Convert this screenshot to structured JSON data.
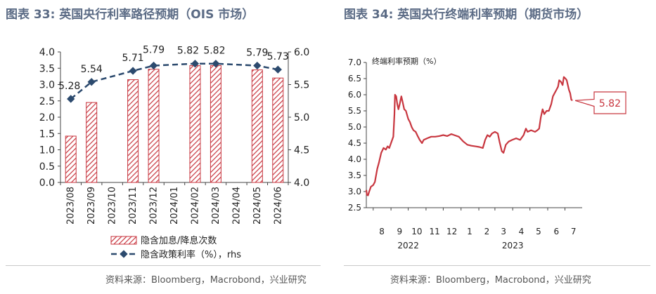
{
  "panels": {
    "left": {
      "title": "图表 33: 英国央行利率路径预期（OIS 市场）",
      "source": "资料来源：Bloomberg，Macrobond，兴业研究"
    },
    "right": {
      "title": "图表 34: 英国央行终端利率预期（期货市场）",
      "source": "资料来源：Bloomberg，Macrobond，兴业研究"
    }
  },
  "chart_data": [
    {
      "type": "bar",
      "categories": [
        "2023/08",
        "2023/09",
        "2023/10",
        "2023/11",
        "2023/12",
        "2024/01",
        "2024/02",
        "2024/03",
        "2024/04",
        "2024/05",
        "2024/06"
      ],
      "series": [
        {
          "name": "隐含加息/降息次数",
          "kind": "bar",
          "axis": "left",
          "values": [
            1.42,
            2.45,
            0,
            3.15,
            3.47,
            0,
            3.58,
            3.58,
            0,
            3.45,
            3.2
          ]
        },
        {
          "name": "隐含政策利率（%），rhs",
          "kind": "line",
          "axis": "right",
          "values": [
            5.28,
            5.54,
            null,
            5.71,
            5.79,
            null,
            5.82,
            5.82,
            null,
            5.79,
            5.73
          ],
          "labels": [
            "5.28",
            "5.54",
            "",
            "5.71",
            "5.79",
            "",
            "5.82",
            "5.82",
            "",
            "5.79",
            "5.73"
          ]
        }
      ],
      "ylim": [
        0,
        4.0
      ],
      "yticks": [
        "0.0",
        "0.5",
        "1.0",
        "1.5",
        "2.0",
        "2.5",
        "3.0",
        "3.5",
        "4.0"
      ],
      "y2lim": [
        4.0,
        6.0
      ],
      "y2ticks": [
        "4.0",
        "4.5",
        "5.0",
        "5.5",
        "6.0"
      ],
      "legend_position": "bottom",
      "colors": {
        "bar": "#c8363f",
        "line": "#2c4a6e"
      }
    },
    {
      "type": "line",
      "ylabel": "终端利率预期（%）",
      "ylim": [
        2.5,
        7.0
      ],
      "yticks": [
        "2.5",
        "3.0",
        "3.5",
        "4.0",
        "4.5",
        "5.0",
        "5.5",
        "6.0",
        "6.5",
        "7.0"
      ],
      "month_ticks": [
        "8",
        "9",
        "10",
        "11",
        "12",
        "1",
        "2",
        "3",
        "4",
        "5",
        "6",
        "7"
      ],
      "year_labels": [
        "2022",
        "2023"
      ],
      "callout": "5.82",
      "x_start": "2022-07-20",
      "x_end": "2023-07-31",
      "series": [
        {
          "color": "#c8363f",
          "points": [
            [
              "2022-07-20",
              3.05
            ],
            [
              "2022-07-21",
              2.9
            ],
            [
              "2022-07-23",
              2.88
            ],
            [
              "2022-07-25",
              3.0
            ],
            [
              "2022-07-28",
              3.15
            ],
            [
              "2022-08-01",
              3.2
            ],
            [
              "2022-08-04",
              3.3
            ],
            [
              "2022-08-08",
              3.7
            ],
            [
              "2022-08-11",
              3.9
            ],
            [
              "2022-08-15",
              4.2
            ],
            [
              "2022-08-19",
              4.35
            ],
            [
              "2022-08-23",
              4.3
            ],
            [
              "2022-08-26",
              4.4
            ],
            [
              "2022-08-29",
              4.35
            ],
            [
              "2022-09-01",
              4.5
            ],
            [
              "2022-09-05",
              4.7
            ],
            [
              "2022-09-07",
              5.4
            ],
            [
              "2022-09-08",
              6.0
            ],
            [
              "2022-09-10",
              5.95
            ],
            [
              "2022-09-12",
              5.7
            ],
            [
              "2022-09-14",
              5.55
            ],
            [
              "2022-09-16",
              5.7
            ],
            [
              "2022-09-19",
              5.95
            ],
            [
              "2022-09-21",
              5.8
            ],
            [
              "2022-09-24",
              5.55
            ],
            [
              "2022-09-27",
              5.5
            ],
            [
              "2022-10-01",
              5.25
            ],
            [
              "2022-10-04",
              5.15
            ],
            [
              "2022-10-07",
              5.0
            ],
            [
              "2022-10-10",
              4.9
            ],
            [
              "2022-10-14",
              4.85
            ],
            [
              "2022-10-18",
              4.7
            ],
            [
              "2022-10-21",
              4.6
            ],
            [
              "2022-10-25",
              4.5
            ],
            [
              "2022-10-28",
              4.6
            ],
            [
              "2022-11-03",
              4.65
            ],
            [
              "2022-11-10",
              4.7
            ],
            [
              "2022-11-17",
              4.7
            ],
            [
              "2022-11-24",
              4.72
            ],
            [
              "2022-12-01",
              4.75
            ],
            [
              "2022-12-08",
              4.72
            ],
            [
              "2022-12-15",
              4.78
            ],
            [
              "2022-12-20",
              4.75
            ],
            [
              "2022-12-28",
              4.7
            ],
            [
              "2023-01-05",
              4.55
            ],
            [
              "2023-01-12",
              4.45
            ],
            [
              "2023-01-19",
              4.42
            ],
            [
              "2023-01-26",
              4.4
            ],
            [
              "2023-02-02",
              4.38
            ],
            [
              "2023-02-08",
              4.35
            ],
            [
              "2023-02-12",
              4.6
            ],
            [
              "2023-02-16",
              4.75
            ],
            [
              "2023-02-20",
              4.7
            ],
            [
              "2023-02-24",
              4.8
            ],
            [
              "2023-03-01",
              4.85
            ],
            [
              "2023-03-06",
              4.8
            ],
            [
              "2023-03-09",
              4.55
            ],
            [
              "2023-03-13",
              4.25
            ],
            [
              "2023-03-16",
              4.2
            ],
            [
              "2023-03-20",
              4.45
            ],
            [
              "2023-03-25",
              4.55
            ],
            [
              "2023-03-31",
              4.6
            ],
            [
              "2023-04-07",
              4.65
            ],
            [
              "2023-04-14",
              4.6
            ],
            [
              "2023-04-20",
              4.75
            ],
            [
              "2023-04-24",
              4.95
            ],
            [
              "2023-04-27",
              4.85
            ],
            [
              "2023-05-03",
              4.9
            ],
            [
              "2023-05-10",
              4.85
            ],
            [
              "2023-05-14",
              4.9
            ],
            [
              "2023-05-17",
              4.95
            ],
            [
              "2023-05-20",
              5.3
            ],
            [
              "2023-05-23",
              5.55
            ],
            [
              "2023-05-26",
              5.4
            ],
            [
              "2023-05-30",
              5.5
            ],
            [
              "2023-06-03",
              5.5
            ],
            [
              "2023-06-07",
              5.7
            ],
            [
              "2023-06-10",
              5.95
            ],
            [
              "2023-06-13",
              6.05
            ],
            [
              "2023-06-16",
              6.15
            ],
            [
              "2023-06-19",
              6.25
            ],
            [
              "2023-06-21",
              6.45
            ],
            [
              "2023-06-24",
              6.4
            ],
            [
              "2023-06-27",
              6.3
            ],
            [
              "2023-06-29",
              6.55
            ],
            [
              "2023-07-02",
              6.5
            ],
            [
              "2023-07-04",
              6.45
            ],
            [
              "2023-07-06",
              6.3
            ],
            [
              "2023-07-08",
              6.15
            ],
            [
              "2023-07-10",
              6.05
            ],
            [
              "2023-07-12",
              5.85
            ],
            [
              "2023-07-14",
              5.82
            ]
          ]
        }
      ]
    }
  ]
}
